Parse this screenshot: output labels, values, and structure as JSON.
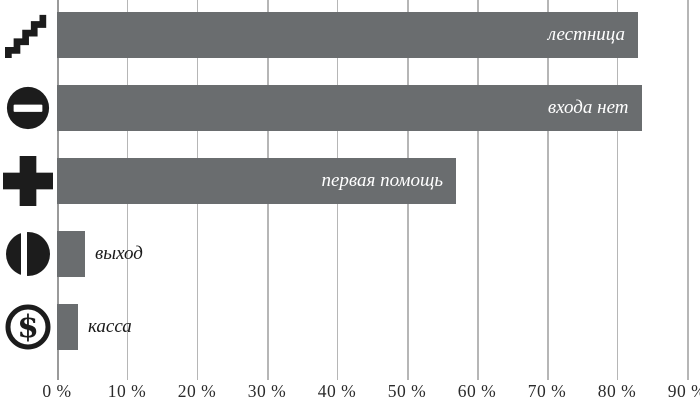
{
  "chart_data": {
    "type": "bar",
    "orientation": "horizontal",
    "title": "",
    "xlabel": "",
    "ylabel": "",
    "xlim": [
      0,
      90
    ],
    "grid": "vertical",
    "legend": "none",
    "categories": [
      "лестница",
      "входа нет",
      "первая помощь",
      "выход",
      "касса"
    ],
    "values": [
      83,
      83.5,
      57,
      4,
      3
    ],
    "bars": [
      {
        "label": "лестница",
        "value": 83,
        "icon": "stairs-icon",
        "label_placement": "inside"
      },
      {
        "label": "входа нет",
        "value": 83.5,
        "icon": "no-entry-icon",
        "label_placement": "inside"
      },
      {
        "label": "первая помощь",
        "value": 57,
        "icon": "first-aid-cross-icon",
        "label_placement": "inside"
      },
      {
        "label": "выход",
        "value": 4,
        "icon": "exit-icon",
        "label_placement": "outside"
      },
      {
        "label": "касса",
        "value": 3,
        "icon": "dollar-sign-icon",
        "label_placement": "outside"
      }
    ],
    "x_ticks": [
      "0 %",
      "10 %",
      "20 %",
      "30 %",
      "40 %",
      "50 %",
      "60 %",
      "70 %",
      "80 %",
      "90 %"
    ]
  },
  "colors": {
    "bar": "#6a6d6f",
    "icon": "#1c1c1c",
    "gridline": "#b6b6b6",
    "zero_line": "#9a9a9a",
    "label_inside": "#ffffff",
    "label_outside": "#1a1a1a",
    "axis_text": "#2b2b2b",
    "background": "#ffffff"
  }
}
